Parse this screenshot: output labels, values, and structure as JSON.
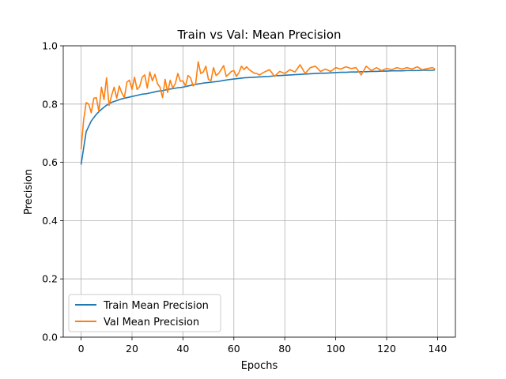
{
  "chart_data": {
    "type": "line",
    "title": "Train vs Val: Mean Precision",
    "xlabel": "Epochs",
    "ylabel": "Precision",
    "xlim": [
      -7,
      147
    ],
    "ylim": [
      0.0,
      1.0
    ],
    "xticks": [
      0,
      20,
      40,
      60,
      80,
      100,
      120,
      140
    ],
    "yticks": [
      0.0,
      0.2,
      0.4,
      0.6,
      0.8,
      1.0
    ],
    "xtick_labels": [
      "0",
      "20",
      "40",
      "60",
      "80",
      "100",
      "120",
      "140"
    ],
    "ytick_labels": [
      "0.0",
      "0.2",
      "0.4",
      "0.6",
      "0.8",
      "1.0"
    ],
    "grid": true,
    "legend_position": "lower-left",
    "series": [
      {
        "name": "Train Mean Precision",
        "color": "#1f77b4",
        "x": [
          0,
          2,
          4,
          6,
          8,
          10,
          12,
          14,
          16,
          18,
          20,
          22,
          24,
          26,
          28,
          30,
          32,
          34,
          36,
          38,
          40,
          42,
          44,
          46,
          48,
          50,
          52,
          54,
          56,
          58,
          60,
          62,
          64,
          66,
          68,
          70,
          72,
          74,
          76,
          78,
          80,
          82,
          84,
          86,
          88,
          90,
          92,
          94,
          96,
          98,
          100,
          102,
          104,
          106,
          108,
          110,
          112,
          114,
          116,
          118,
          120,
          122,
          124,
          126,
          128,
          130,
          132,
          134,
          136,
          138,
          139
        ],
        "y": [
          0.592,
          0.705,
          0.742,
          0.765,
          0.782,
          0.796,
          0.806,
          0.812,
          0.818,
          0.822,
          0.826,
          0.83,
          0.834,
          0.836,
          0.84,
          0.844,
          0.846,
          0.85,
          0.853,
          0.856,
          0.858,
          0.862,
          0.866,
          0.869,
          0.872,
          0.874,
          0.876,
          0.878,
          0.881,
          0.884,
          0.886,
          0.888,
          0.89,
          0.891,
          0.892,
          0.893,
          0.894,
          0.895,
          0.897,
          0.898,
          0.899,
          0.9,
          0.901,
          0.902,
          0.903,
          0.904,
          0.905,
          0.906,
          0.906,
          0.907,
          0.908,
          0.909,
          0.909,
          0.91,
          0.91,
          0.911,
          0.911,
          0.912,
          0.912,
          0.913,
          0.913,
          0.914,
          0.914,
          0.914,
          0.915,
          0.915,
          0.915,
          0.916,
          0.916,
          0.916,
          0.917
        ]
      },
      {
        "name": "Val Mean Precision",
        "color": "#ff7f0e",
        "x": [
          0,
          1,
          2,
          3,
          4,
          5,
          6,
          7,
          8,
          9,
          10,
          11,
          12,
          13,
          14,
          15,
          16,
          17,
          18,
          19,
          20,
          21,
          22,
          23,
          24,
          25,
          26,
          27,
          28,
          29,
          30,
          31,
          32,
          33,
          34,
          35,
          36,
          37,
          38,
          39,
          40,
          41,
          42,
          43,
          44,
          45,
          46,
          47,
          48,
          49,
          50,
          51,
          52,
          53,
          54,
          55,
          56,
          57,
          58,
          59,
          60,
          61,
          62,
          63,
          64,
          65,
          66,
          67,
          68,
          69,
          70,
          72,
          74,
          76,
          78,
          80,
          82,
          84,
          86,
          88,
          90,
          92,
          94,
          96,
          98,
          100,
          102,
          104,
          106,
          108,
          110,
          112,
          114,
          116,
          118,
          120,
          122,
          124,
          126,
          128,
          130,
          132,
          134,
          136,
          138,
          139
        ],
        "y": [
          0.645,
          0.745,
          0.805,
          0.8,
          0.77,
          0.82,
          0.822,
          0.775,
          0.858,
          0.815,
          0.89,
          0.795,
          0.83,
          0.858,
          0.82,
          0.862,
          0.838,
          0.822,
          0.875,
          0.882,
          0.85,
          0.892,
          0.85,
          0.86,
          0.892,
          0.9,
          0.855,
          0.91,
          0.88,
          0.902,
          0.87,
          0.858,
          0.822,
          0.885,
          0.84,
          0.882,
          0.855,
          0.87,
          0.905,
          0.878,
          0.88,
          0.862,
          0.898,
          0.89,
          0.862,
          0.87,
          0.945,
          0.905,
          0.91,
          0.93,
          0.885,
          0.88,
          0.925,
          0.898,
          0.905,
          0.918,
          0.932,
          0.895,
          0.903,
          0.912,
          0.915,
          0.895,
          0.908,
          0.93,
          0.918,
          0.928,
          0.918,
          0.912,
          0.906,
          0.905,
          0.9,
          0.91,
          0.918,
          0.895,
          0.912,
          0.905,
          0.918,
          0.91,
          0.935,
          0.905,
          0.925,
          0.93,
          0.912,
          0.92,
          0.912,
          0.925,
          0.92,
          0.928,
          0.922,
          0.925,
          0.9,
          0.93,
          0.915,
          0.925,
          0.915,
          0.922,
          0.918,
          0.925,
          0.92,
          0.925,
          0.92,
          0.928,
          0.918,
          0.922,
          0.925,
          0.92
        ]
      }
    ]
  }
}
